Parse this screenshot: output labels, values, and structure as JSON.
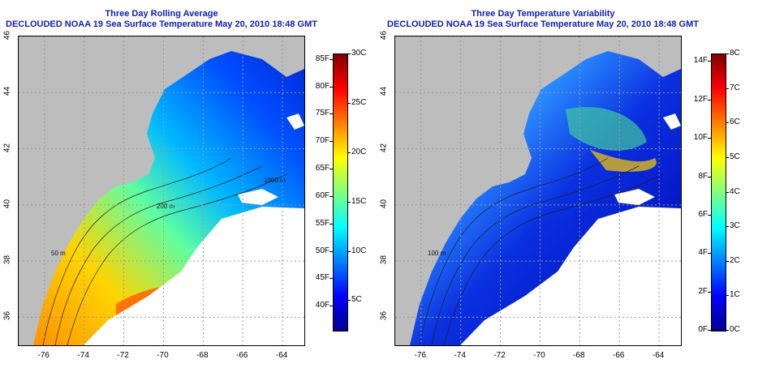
{
  "panels": [
    {
      "title_line1": "Three Day Rolling Average",
      "title_line2": "DECLOUDED NOAA 19 Sea Surface Temperature May 20, 2010 18:48 GMT"
    },
    {
      "title_line1": "Three Day Temperature Variability",
      "title_line2": "DECLOUDED NOAA 19 Sea Surface Temperature May 20, 2010 18:48 GMT"
    }
  ],
  "chart_data": [
    {
      "type": "heatmap",
      "title": "Three Day Rolling Average",
      "subtitle": "DECLOUDED NOAA 19 Sea Surface Temperature May 20, 2010 18:48 GMT",
      "x_ticks": [
        "-76",
        "-74",
        "-72",
        "-70",
        "-68",
        "-66",
        "-64"
      ],
      "y_ticks": [
        "36",
        "38",
        "40",
        "42",
        "44",
        "46"
      ],
      "xlim": [
        -77.3,
        -62.9
      ],
      "ylim": [
        35,
        46
      ],
      "grid": true,
      "contour_labels": [
        "50 m",
        "200 m",
        "1000 m"
      ],
      "colorbar": {
        "left_labels": [
          "40F",
          "45F",
          "50F",
          "55F",
          "60F",
          "65F",
          "70F",
          "75F",
          "80F",
          "85F"
        ],
        "left_values": [
          40,
          45,
          50,
          55,
          60,
          65,
          70,
          75,
          80,
          85
        ],
        "right_labels": [
          "5C",
          "10C",
          "15C",
          "20C",
          "25C",
          "30C"
        ],
        "right_values": [
          5,
          10,
          15,
          20,
          25,
          30
        ],
        "range_c": [
          2,
          30
        ]
      }
    },
    {
      "type": "heatmap",
      "title": "Three Day Temperature Variability",
      "subtitle": "DECLOUDED NOAA 19 Sea Surface Temperature May 20, 2010 18:48 GMT",
      "x_ticks": [
        "-76",
        "-74",
        "-72",
        "-70",
        "-68",
        "-66",
        "-64"
      ],
      "y_ticks": [
        "36",
        "38",
        "40",
        "42",
        "44",
        "46"
      ],
      "xlim": [
        -77.3,
        -62.9
      ],
      "ylim": [
        35,
        46
      ],
      "grid": true,
      "contour_labels": [
        "100 m"
      ],
      "colorbar": {
        "left_labels": [
          "0F",
          "2F",
          "4F",
          "6F",
          "8F",
          "10F",
          "12F",
          "14F"
        ],
        "left_values": [
          0,
          2,
          4,
          6,
          8,
          10,
          12,
          14
        ],
        "right_labels": [
          "0C",
          "1C",
          "2C",
          "3C",
          "4C",
          "5C",
          "6C",
          "7C",
          "8C"
        ],
        "right_values": [
          0,
          1,
          2,
          3,
          4,
          5,
          6,
          7,
          8
        ],
        "range_c": [
          0,
          8
        ]
      }
    }
  ],
  "colors": {
    "title": "#1020b0",
    "land": "#bdbdbd",
    "cloud": "#ffffff",
    "grid": "#9a9a9a",
    "colormap": [
      "#00008f",
      "#0000ff",
      "#0080ff",
      "#00ffff",
      "#80ff80",
      "#ffff00",
      "#ff8000",
      "#ff0000",
      "#800000"
    ]
  }
}
